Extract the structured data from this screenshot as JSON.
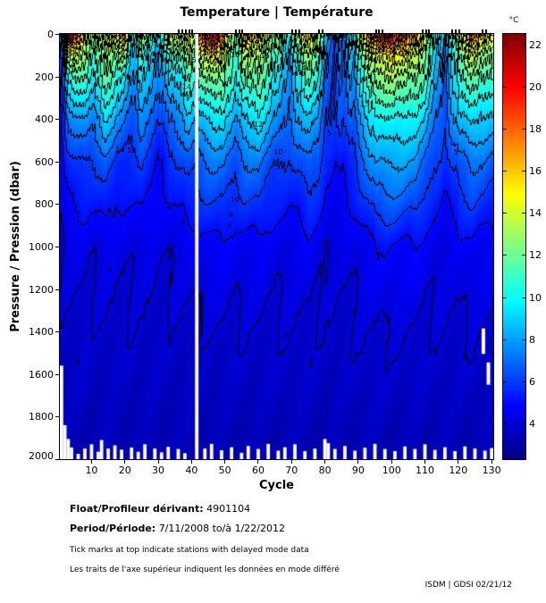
{
  "title": "Temperature | Température",
  "colorbar": {
    "unit": "°C",
    "ticks": [
      22,
      20,
      18,
      16,
      14,
      12,
      10,
      8,
      6,
      4
    ],
    "vmin": 2.3,
    "vmax": 22.5
  },
  "axes": {
    "x": {
      "label": "Cycle",
      "ticks": [
        10,
        20,
        30,
        40,
        50,
        60,
        70,
        80,
        90,
        100,
        110,
        120,
        130
      ],
      "min": 0.5,
      "max": 130.5
    },
    "y": {
      "label": "Pressure / Pression (dbar)",
      "ticks": [
        0,
        200,
        400,
        600,
        800,
        1000,
        1200,
        1400,
        1600,
        1800,
        2000
      ],
      "min": 0,
      "max": 2000
    }
  },
  "footer": {
    "float_label": "Float/Profileur dérivant:",
    "float_value": "4901104",
    "period_label": "Period/Période:",
    "period_value": "7/11/2008 to/à 1/22/2012",
    "note_en": "Tick marks at top indicate stations with delayed mode data",
    "note_fr": "Les traits de l'axe supérieur indiquent les données en mode différé",
    "credit": "ISDM | GDSI  02/21/12"
  },
  "chart_data": {
    "type": "heatmap",
    "title": "Temperature | Température",
    "xlabel": "Cycle",
    "ylabel": "Pressure / Pression (dbar)",
    "xlim": [
      0.5,
      130.5
    ],
    "ylim": [
      2000,
      0
    ],
    "colormap": "jet",
    "clim": [
      2.3,
      22.5
    ],
    "contour_interval": 1,
    "depths": [
      0,
      100,
      200,
      400,
      600,
      1000,
      1400,
      2000
    ],
    "cycles": [
      1,
      3,
      5,
      8,
      11,
      14,
      17,
      20,
      22,
      25,
      28,
      30,
      33,
      36,
      39,
      41,
      42,
      44,
      47,
      50,
      53,
      56,
      60,
      63,
      66,
      69,
      72,
      75,
      78,
      80,
      83,
      86,
      89,
      92,
      95,
      98,
      101,
      104,
      107,
      110,
      113,
      116,
      118,
      121,
      124,
      127,
      130
    ],
    "temps": [
      [
        8,
        6.5,
        6,
        5,
        4.5,
        4,
        3.8,
        3.3
      ],
      [
        20,
        13,
        10,
        7,
        5.5,
        4.2,
        3.8,
        3.3
      ],
      [
        19,
        14,
        11,
        7.5,
        6,
        4.3,
        3.8,
        3.3
      ],
      [
        15,
        12.5,
        11,
        8,
        6,
        4.3,
        3.8,
        3.3
      ],
      [
        13,
        11,
        10,
        7.5,
        6,
        4.2,
        3.8,
        3.3
      ],
      [
        14,
        12.5,
        12,
        9,
        6.5,
        4.4,
        3.8,
        3.3
      ],
      [
        15,
        12,
        10.5,
        8,
        6,
        4.3,
        3.8,
        3.3
      ],
      [
        16,
        12,
        9,
        7,
        5.5,
        4.2,
        3.8,
        3.3
      ],
      [
        10,
        8.5,
        8,
        6.5,
        5.5,
        4.2,
        3.8,
        3.3
      ],
      [
        13,
        10.5,
        9.5,
        7.5,
        6,
        4.3,
        3.8,
        3.3
      ],
      [
        12,
        9.5,
        8.5,
        6.5,
        5.5,
        4.2,
        3.8,
        3.3
      ],
      [
        9,
        7.5,
        7,
        6,
        5,
        4.1,
        3.8,
        3.3
      ],
      [
        14,
        10.5,
        9,
        7,
        5.5,
        4.2,
        3.8,
        3.3
      ],
      [
        15,
        12,
        10,
        7.5,
        6,
        4.3,
        3.8,
        3.3
      ],
      [
        15,
        12.5,
        11,
        8.5,
        6.5,
        4.4,
        3.8,
        3.3
      ],
      [
        15,
        12,
        10.5,
        8,
        6.3,
        4.4,
        3.8,
        3.3
      ],
      [
        17,
        13,
        11,
        8.5,
        6.5,
        4.5,
        3.9,
        3.3
      ],
      [
        19,
        14,
        12,
        9,
        7,
        4.7,
        3.9,
        3.3
      ],
      [
        20,
        15,
        12.5,
        9.5,
        7.2,
        4.8,
        3.9,
        3.3
      ],
      [
        17,
        13.5,
        12,
        9,
        7,
        4.7,
        3.9,
        3.3
      ],
      [
        12,
        10.5,
        10,
        8,
        6.5,
        4.5,
        3.9,
        3.3
      ],
      [
        16,
        13,
        11.5,
        9,
        7,
        4.6,
        3.9,
        3.3
      ],
      [
        15,
        13,
        12,
        9.5,
        7.2,
        4.7,
        3.9,
        3.3
      ],
      [
        14,
        11.5,
        10.5,
        8.5,
        6.5,
        4.5,
        3.9,
        3.3
      ],
      [
        12,
        10,
        9,
        7.5,
        6,
        4.4,
        3.9,
        3.3
      ],
      [
        10,
        8.5,
        8,
        7,
        5.8,
        4.3,
        3.9,
        3.3
      ],
      [
        14,
        11.5,
        10,
        8,
        6.3,
        4.4,
        3.9,
        3.3
      ],
      [
        15,
        12.5,
        11,
        8.5,
        6.8,
        4.6,
        3.9,
        3.3
      ],
      [
        13,
        11,
        10,
        8,
        6.3,
        4.4,
        3.9,
        3.3
      ],
      [
        8,
        7,
        6.8,
        6,
        5.3,
        4.2,
        3.8,
        3.3
      ],
      [
        7,
        6.5,
        6.3,
        5.8,
        5,
        4.1,
        3.8,
        3.3
      ],
      [
        8,
        7.2,
        7,
        6.2,
        5.4,
        4.2,
        3.8,
        3.3
      ],
      [
        10,
        8.5,
        8,
        7,
        5.8,
        4.3,
        3.9,
        3.3
      ],
      [
        16,
        13,
        11.5,
        9,
        7,
        4.6,
        3.9,
        3.3
      ],
      [
        19,
        14.5,
        12.5,
        9.5,
        8,
        4.8,
        4,
        3.3
      ],
      [
        21,
        15,
        13,
        10,
        8.2,
        5,
        4,
        3.3
      ],
      [
        19,
        15,
        13,
        10,
        8.2,
        5,
        4,
        3.3
      ],
      [
        18,
        14.5,
        12.5,
        9.8,
        8,
        4.8,
        4,
        3.3
      ],
      [
        17,
        14,
        12,
        9.5,
        7.8,
        4.8,
        4,
        3.3
      ],
      [
        14,
        12,
        11,
        8.8,
        6.8,
        4.6,
        3.9,
        3.3
      ],
      [
        10,
        9,
        8.5,
        7.2,
        6,
        4.4,
        3.9,
        3.3
      ],
      [
        8,
        7.2,
        7,
        6.2,
        5.4,
        4.2,
        3.9,
        3.3
      ],
      [
        11,
        9.5,
        9,
        7.5,
        6.2,
        4.4,
        3.9,
        3.3
      ],
      [
        15,
        12.5,
        11,
        8.8,
        6.8,
        4.6,
        3.9,
        3.3
      ],
      [
        18,
        14,
        12,
        9.5,
        7.2,
        4.8,
        4,
        3.3
      ],
      [
        16,
        13,
        11.5,
        9,
        7,
        4.6,
        3.9,
        3.3
      ],
      [
        15,
        12.5,
        11,
        8.5,
        6.6,
        4.5,
        3.9,
        3.3
      ]
    ],
    "missing_cycles": [
      41.5
    ],
    "bottom_gaps": [
      {
        "c": 1,
        "p": 1560
      },
      {
        "c": 2,
        "p": 1840
      },
      {
        "c": 3,
        "p": 1905
      },
      {
        "c": 4,
        "p": 1945
      },
      {
        "c": 6,
        "p": 1975
      },
      {
        "c": 8,
        "p": 1950
      },
      {
        "c": 10,
        "p": 1930
      },
      {
        "c": 12,
        "p": 1965
      },
      {
        "c": 13,
        "p": 1910
      },
      {
        "c": 15,
        "p": 1950
      },
      {
        "c": 17,
        "p": 1935
      },
      {
        "c": 19,
        "p": 1955
      },
      {
        "c": 22,
        "p": 1945
      },
      {
        "c": 24,
        "p": 1965
      },
      {
        "c": 26,
        "p": 1930
      },
      {
        "c": 29,
        "p": 1950
      },
      {
        "c": 31,
        "p": 1968
      },
      {
        "c": 33,
        "p": 1942
      },
      {
        "c": 36,
        "p": 1952
      },
      {
        "c": 38,
        "p": 1972
      },
      {
        "c": 44,
        "p": 1950
      },
      {
        "c": 46,
        "p": 1928
      },
      {
        "c": 49,
        "p": 1958
      },
      {
        "c": 52,
        "p": 1944
      },
      {
        "c": 55,
        "p": 1970
      },
      {
        "c": 57,
        "p": 1938
      },
      {
        "c": 60,
        "p": 1952
      },
      {
        "c": 63,
        "p": 1928
      },
      {
        "c": 66,
        "p": 1960
      },
      {
        "c": 68,
        "p": 1944
      },
      {
        "c": 71,
        "p": 1930
      },
      {
        "c": 74,
        "p": 1962
      },
      {
        "c": 77,
        "p": 1950
      },
      {
        "c": 80,
        "p": 1905
      },
      {
        "c": 81,
        "p": 1925
      },
      {
        "c": 83,
        "p": 1952
      },
      {
        "c": 86,
        "p": 1938
      },
      {
        "c": 89,
        "p": 1960
      },
      {
        "c": 92,
        "p": 1946
      },
      {
        "c": 95,
        "p": 1928
      },
      {
        "c": 98,
        "p": 1952
      },
      {
        "c": 101,
        "p": 1962
      },
      {
        "c": 104,
        "p": 1940
      },
      {
        "c": 107,
        "p": 1952
      },
      {
        "c": 110,
        "p": 1930
      },
      {
        "c": 113,
        "p": 1956
      },
      {
        "c": 116,
        "p": 1944
      },
      {
        "c": 119,
        "p": 1962
      },
      {
        "c": 122,
        "p": 1940
      },
      {
        "c": 125,
        "p": 1950
      },
      {
        "c": 128,
        "p": 1960
      },
      {
        "c": 130,
        "p": 1948
      }
    ],
    "right_gaps": [
      {
        "c": 127.5,
        "from": 1385,
        "to": 1505
      },
      {
        "c": 129,
        "from": 1545,
        "to": 1650
      }
    ],
    "delayed_mode_tick_cycles": [
      36,
      37,
      38,
      39,
      40,
      53,
      54,
      55,
      70,
      71,
      72,
      78,
      79,
      95,
      96,
      97,
      109,
      110,
      111,
      118,
      119,
      120,
      127,
      128
    ],
    "contour_labels": [
      {
        "v": "13",
        "c": 18.5,
        "p": 545
      },
      {
        "v": "12",
        "c": 22,
        "p": 550
      },
      {
        "v": "10",
        "c": 53,
        "p": 780
      },
      {
        "v": "8",
        "c": 52.5,
        "p": 855
      },
      {
        "v": "6",
        "c": 52,
        "p": 905
      },
      {
        "v": "14",
        "c": 38.5,
        "p": 250
      },
      {
        "v": "15",
        "c": 40,
        "p": 128
      },
      {
        "v": "16",
        "c": 53,
        "p": 100
      },
      {
        "v": "16",
        "c": 62,
        "p": 105
      },
      {
        "v": "14",
        "c": 73,
        "p": 165
      },
      {
        "v": "18",
        "c": 45,
        "p": 55
      },
      {
        "v": "17",
        "c": 97,
        "p": 75
      },
      {
        "v": "16",
        "c": 104,
        "p": 95
      },
      {
        "v": "15",
        "c": 112,
        "p": 60
      },
      {
        "v": "12",
        "c": 60,
        "p": 430
      },
      {
        "v": "10",
        "c": 66,
        "p": 560
      },
      {
        "v": "13",
        "c": 92,
        "p": 330
      },
      {
        "v": "5",
        "c": 82,
        "p": 470
      },
      {
        "v": "5",
        "c": 120,
        "p": 560
      },
      {
        "v": "4",
        "c": 6.5,
        "p": 1550
      },
      {
        "v": "4",
        "c": 16,
        "p": 1110
      },
      {
        "v": "4",
        "c": 38,
        "p": 885
      },
      {
        "v": "4",
        "c": 69,
        "p": 1420
      }
    ]
  }
}
